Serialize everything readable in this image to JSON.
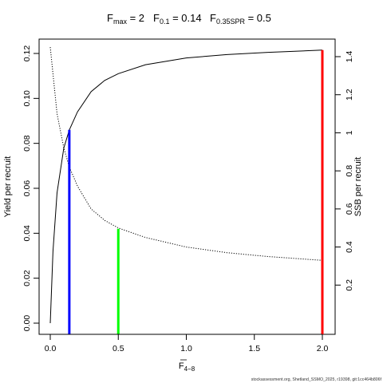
{
  "title": {
    "fmax": {
      "base": "F",
      "sub": "max",
      "value": " = 2"
    },
    "f01": {
      "base": "F",
      "sub": "0.1",
      "value": " = 0.14"
    },
    "fspr": {
      "base": "F",
      "sub": "0.35SPR",
      "value": " = 0.5"
    }
  },
  "footer_text": "stockassessment.org, Shetland_SSMO_2025, r19398, git:1cc464b806f",
  "chart_data": {
    "type": "line",
    "x_axis": {
      "label_base": "F",
      "label_sub": "4−8",
      "range": [
        0,
        2
      ],
      "ticks": [
        0,
        0.5,
        1,
        1.5,
        2
      ],
      "tick_labels": [
        "0.0",
        "0.5",
        "1.0",
        "1.5",
        "2.0"
      ]
    },
    "y_left": {
      "label": "Yield per recruit",
      "range": [
        0,
        0.122
      ],
      "ticks": [
        0,
        0.02,
        0.04,
        0.06,
        0.08,
        0.1,
        0.12
      ],
      "tick_labels": [
        "0.00",
        "0.02",
        "0.04",
        "0.06",
        "0.08",
        "0.10",
        "0.12"
      ]
    },
    "y_right": {
      "label": "SSB per recruit",
      "range": [
        0,
        1.46
      ],
      "ticks": [
        0.2,
        0.4,
        0.6,
        0.8,
        1,
        1.2,
        1.4
      ],
      "tick_labels": [
        "0.2",
        "0.4",
        "0.6",
        "0.8",
        "1",
        "1.2",
        "1.4"
      ]
    },
    "series": [
      {
        "axis": "left",
        "style": "solid",
        "color": "#000000",
        "x": [
          0,
          0.02,
          0.05,
          0.1,
          0.14,
          0.2,
          0.3,
          0.4,
          0.5,
          0.7,
          1.0,
          1.3,
          1.6,
          2.0
        ],
        "y": [
          0,
          0.032,
          0.058,
          0.078,
          0.086,
          0.094,
          0.103,
          0.108,
          0.111,
          0.115,
          0.118,
          0.1195,
          0.1205,
          0.1215
        ]
      },
      {
        "axis": "right",
        "style": "dotted",
        "color": "#000000",
        "x": [
          0,
          0.05,
          0.1,
          0.14,
          0.2,
          0.3,
          0.4,
          0.5,
          0.7,
          1.0,
          1.3,
          1.6,
          2.0
        ],
        "y": [
          1.45,
          1.1,
          0.92,
          0.82,
          0.72,
          0.6,
          0.54,
          0.5,
          0.45,
          0.4,
          0.37,
          0.35,
          0.33
        ]
      }
    ],
    "reference_lines": [
      {
        "name": "F0.1",
        "x": 0.14,
        "y_top": 0.086,
        "color": "#0000ff"
      },
      {
        "name": "F0.35SPR",
        "x": 0.5,
        "y_top": 0.042,
        "color": "#00ff00"
      },
      {
        "name": "Fmax",
        "x": 2.0,
        "y_top": 0.1215,
        "color": "#ff0000"
      }
    ]
  }
}
